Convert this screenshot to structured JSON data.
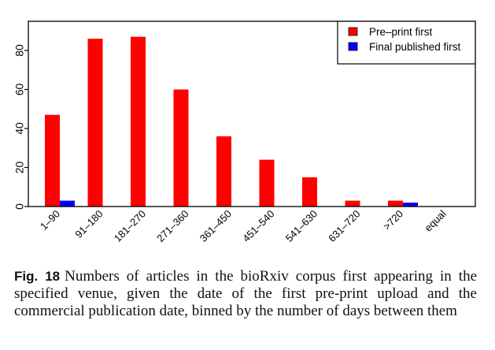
{
  "chart_data": {
    "type": "bar",
    "title": "",
    "xlabel": "",
    "ylabel": "",
    "ylim": [
      0,
      95
    ],
    "yticks": [
      0,
      20,
      40,
      60,
      80
    ],
    "grid": false,
    "legend_position": "top-right",
    "categories": [
      "1–90",
      "91–180",
      "181–270",
      "271–360",
      "361–450",
      "451–540",
      "541–630",
      "631–720",
      ">720",
      "equal"
    ],
    "series": [
      {
        "name": "Pre–print first",
        "color": "#ff0000",
        "values": [
          47,
          86,
          87,
          60,
          36,
          24,
          15,
          3,
          3,
          0
        ]
      },
      {
        "name": "Final published first",
        "color": "#0000ff",
        "values": [
          3,
          0,
          0,
          0,
          0,
          0,
          0,
          0,
          2,
          0
        ]
      }
    ]
  },
  "caption": {
    "label": "Fig. 18",
    "text": "Numbers of articles in the bioRxiv corpus first appearing in the specified venue, given the date of the first pre-print upload and the commercial publication date, binned by the number of days between them"
  }
}
